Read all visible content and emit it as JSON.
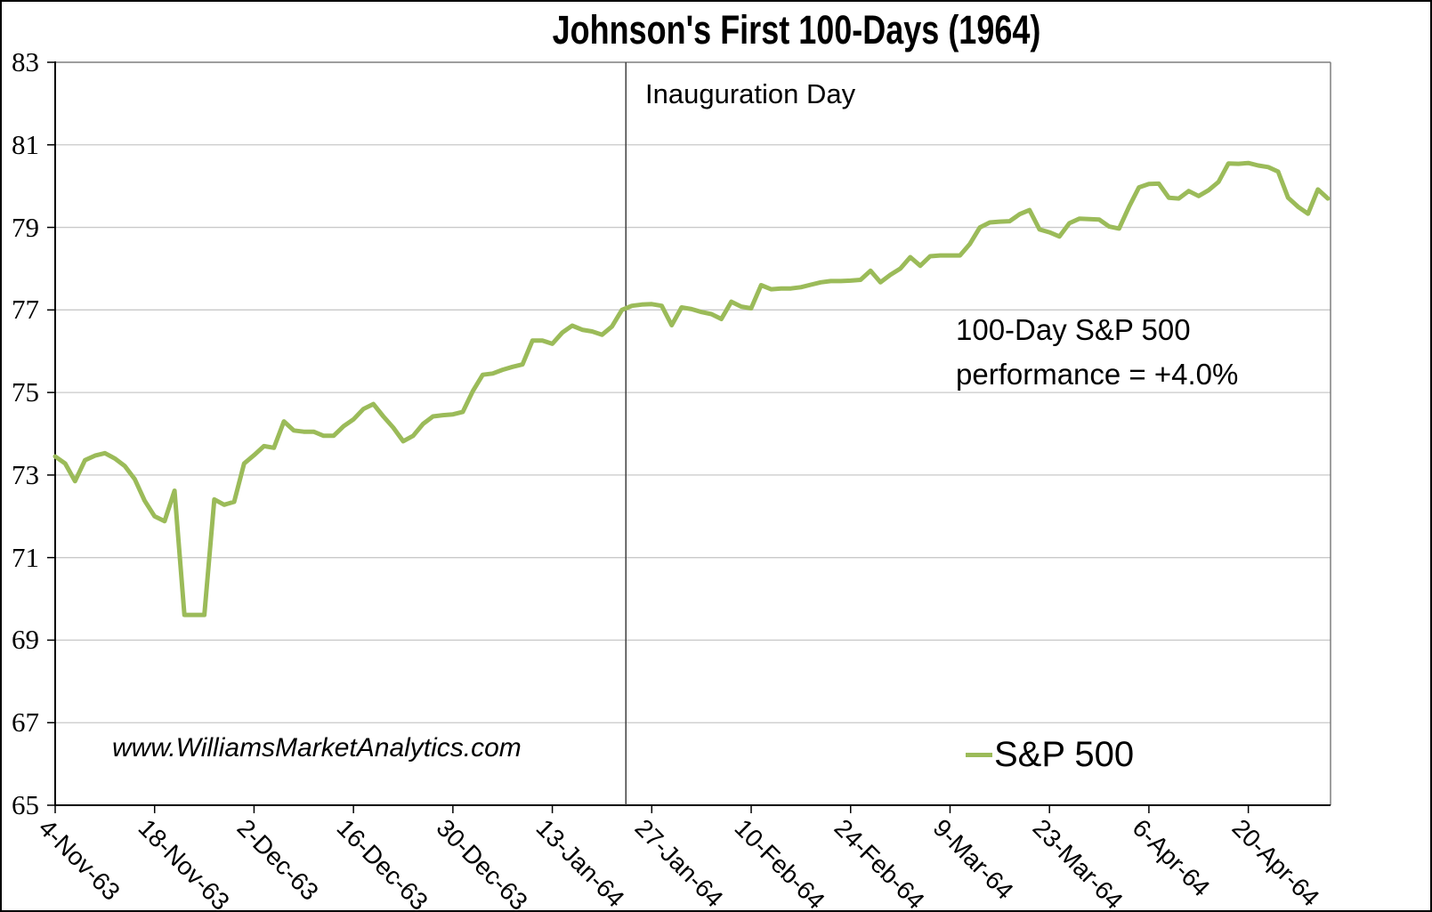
{
  "chart": {
    "title": "Johnson's First 100-Days (1964)",
    "inauguration_label": "Inauguration Day",
    "annotation_line1": "100-Day S&P 500",
    "annotation_line2": "performance = +4.0%",
    "legend_label": "S&P 500",
    "watermark": "www.WilliamsMarketAnalytics.com"
  },
  "colors": {
    "series": "#9BBB59",
    "grid": "#C9C9C9",
    "axis": "#000000",
    "border": "#7F7F7F",
    "vline": "#404040",
    "text": "#000000",
    "background": "#FFFFFF"
  },
  "chart_data": {
    "type": "line",
    "title": "Johnson's First 100-Days (1964)",
    "xlabel": "",
    "ylabel": "",
    "ylim": [
      65,
      83
    ],
    "yticks": [
      65,
      67,
      69,
      71,
      73,
      75,
      77,
      79,
      81,
      83
    ],
    "grid": "horizontal",
    "legend_position": "inside-bottom-right",
    "xtick_labels": [
      "4-Nov-63",
      "18-Nov-63",
      "2-Dec-63",
      "16-Dec-63",
      "30-Dec-63",
      "13-Jan-64",
      "27-Jan-64",
      "10-Feb-64",
      "24-Feb-64",
      "9-Mar-64",
      "23-Mar-64",
      "6-Apr-64",
      "20-Apr-64"
    ],
    "xtick_every_n_points": 10,
    "annotations": [
      {
        "type": "vline",
        "label": "Inauguration Day",
        "at_point_index": 57.4
      },
      {
        "type": "text",
        "label": "100-Day S&P 500 performance = +4.0%"
      }
    ],
    "series": [
      {
        "name": "S&P 500",
        "color": "#9BBB59",
        "values": [
          73.45,
          73.28,
          72.85,
          73.36,
          73.47,
          73.53,
          73.4,
          73.22,
          72.9,
          72.38,
          72.0,
          71.88,
          72.62,
          69.61,
          69.61,
          69.61,
          72.41,
          72.28,
          72.35,
          73.28,
          73.48,
          73.7,
          73.66,
          74.3,
          74.08,
          74.05,
          74.05,
          73.95,
          73.95,
          74.18,
          74.35,
          74.6,
          74.72,
          74.42,
          74.15,
          73.82,
          73.95,
          74.24,
          74.42,
          74.45,
          74.47,
          74.53,
          75.03,
          75.43,
          75.46,
          75.55,
          75.62,
          75.68,
          76.26,
          76.26,
          76.18,
          76.45,
          76.62,
          76.52,
          76.48,
          76.4,
          76.6,
          77.0,
          77.1,
          77.13,
          77.14,
          77.1,
          76.63,
          77.06,
          77.02,
          76.95,
          76.9,
          76.78,
          77.2,
          77.08,
          77.04,
          77.6,
          77.5,
          77.52,
          77.52,
          77.55,
          77.61,
          77.67,
          77.7,
          77.7,
          77.71,
          77.73,
          77.95,
          77.67,
          77.85,
          78.0,
          78.28,
          78.07,
          78.3,
          78.32,
          78.32,
          78.32,
          78.6,
          79.0,
          79.12,
          79.14,
          79.15,
          79.32,
          79.42,
          78.95,
          78.88,
          78.78,
          79.1,
          79.21,
          79.2,
          79.19,
          79.02,
          78.97,
          79.5,
          79.97,
          80.05,
          80.06,
          79.72,
          79.7,
          79.88,
          79.76,
          79.9,
          80.1,
          80.55,
          80.54,
          80.56,
          80.5,
          80.46,
          80.35,
          79.72,
          79.5,
          79.33,
          79.92,
          79.7
        ]
      }
    ]
  }
}
